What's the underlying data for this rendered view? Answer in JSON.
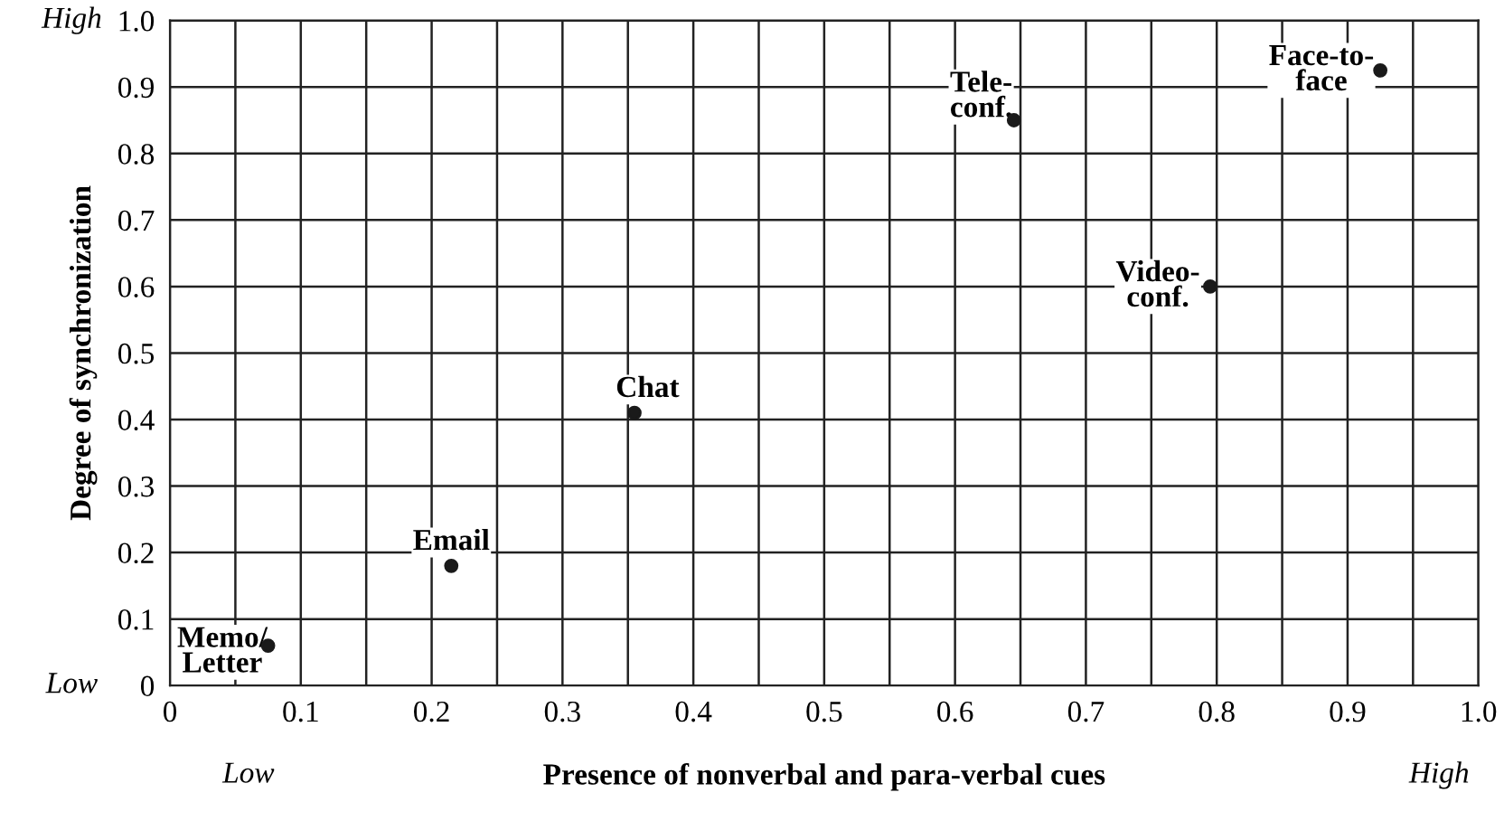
{
  "chart_data": {
    "type": "scatter",
    "xlabel": "Presence of nonverbal and para-verbal cues",
    "ylabel": "Degree of synchronization",
    "x": [
      0.075,
      0.215,
      0.355,
      0.645,
      0.795,
      0.925
    ],
    "series": [
      {
        "color": "#1a1a1a",
        "values": [
          0.06,
          0.18,
          0.41,
          0.85,
          0.6,
          0.925
        ]
      }
    ],
    "marker": "circle",
    "grid": true,
    "xlim": [
      0,
      1.0
    ],
    "ylim": [
      0,
      1.0
    ],
    "xticks": [
      0,
      {
        "value": 0.05,
        "label": null
      },
      0.1,
      {
        "value": 0.15,
        "label": null
      },
      0.2,
      {
        "value": 0.25,
        "label": null
      },
      0.3,
      {
        "value": 0.35,
        "label": null
      },
      0.4,
      {
        "value": 0.45,
        "label": null
      },
      0.5,
      {
        "value": 0.55,
        "label": null
      },
      0.6,
      {
        "value": 0.65,
        "label": null
      },
      0.7,
      {
        "value": 0.75,
        "label": null
      },
      0.8,
      {
        "value": 0.85,
        "label": null
      },
      0.9,
      {
        "value": 0.95,
        "label": null
      },
      {
        "value": 1.0,
        "label": "1.0"
      }
    ],
    "yticks": [
      0,
      0.1,
      0.2,
      0.3,
      0.4,
      0.5,
      0.6,
      0.7,
      0.8,
      0.9,
      {
        "value": 1.0,
        "label": "1.0"
      }
    ],
    "annotations": [
      {
        "text": "Memo/\nLetter",
        "x": 0.075,
        "y": 0.06
      },
      {
        "text": "Email",
        "x": 0.215,
        "y": 0.18
      },
      {
        "text": "Chat",
        "x": 0.355,
        "y": 0.41
      },
      {
        "text": "Tele-\nconf.",
        "x": 0.645,
        "y": 0.85
      },
      {
        "text": "Video-\nconf.",
        "x": 0.795,
        "y": 0.6
      },
      {
        "text": "Face-to-\nface",
        "x": 0.925,
        "y": 0.925
      },
      "High",
      "Low",
      "Low",
      "High"
    ]
  }
}
